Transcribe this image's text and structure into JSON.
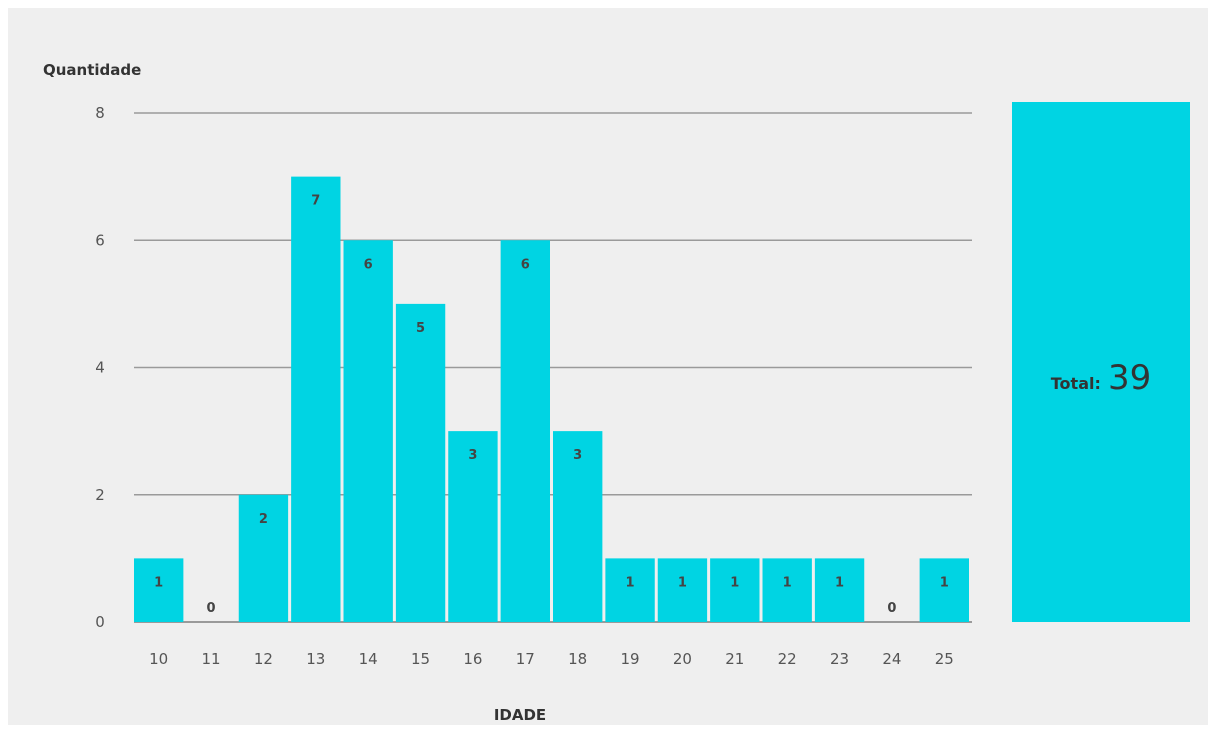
{
  "colors": {
    "bar": "#00d4e3",
    "grid": "#9a9a9a",
    "panel_background": "#efefef"
  },
  "chart_data": {
    "type": "bar",
    "xlabel": "IDADE",
    "ylabel": "Quantidade",
    "ylim": [
      0,
      8
    ],
    "yticks": [
      0,
      2,
      4,
      6,
      8
    ],
    "grid": true,
    "categories": [
      "10",
      "11",
      "12",
      "13",
      "14",
      "15",
      "16",
      "17",
      "18",
      "19",
      "20",
      "21",
      "22",
      "23",
      "24",
      "25"
    ],
    "values": [
      1,
      0,
      2,
      7,
      6,
      5,
      3,
      6,
      3,
      1,
      1,
      1,
      1,
      1,
      0,
      1
    ],
    "data_labels": [
      "1",
      "0",
      "2",
      "7",
      "6",
      "5",
      "3",
      "6",
      "3",
      "1",
      "1",
      "1",
      "1",
      "1",
      "0",
      "1"
    ],
    "total": {
      "label": "Total:",
      "value": "39"
    }
  }
}
